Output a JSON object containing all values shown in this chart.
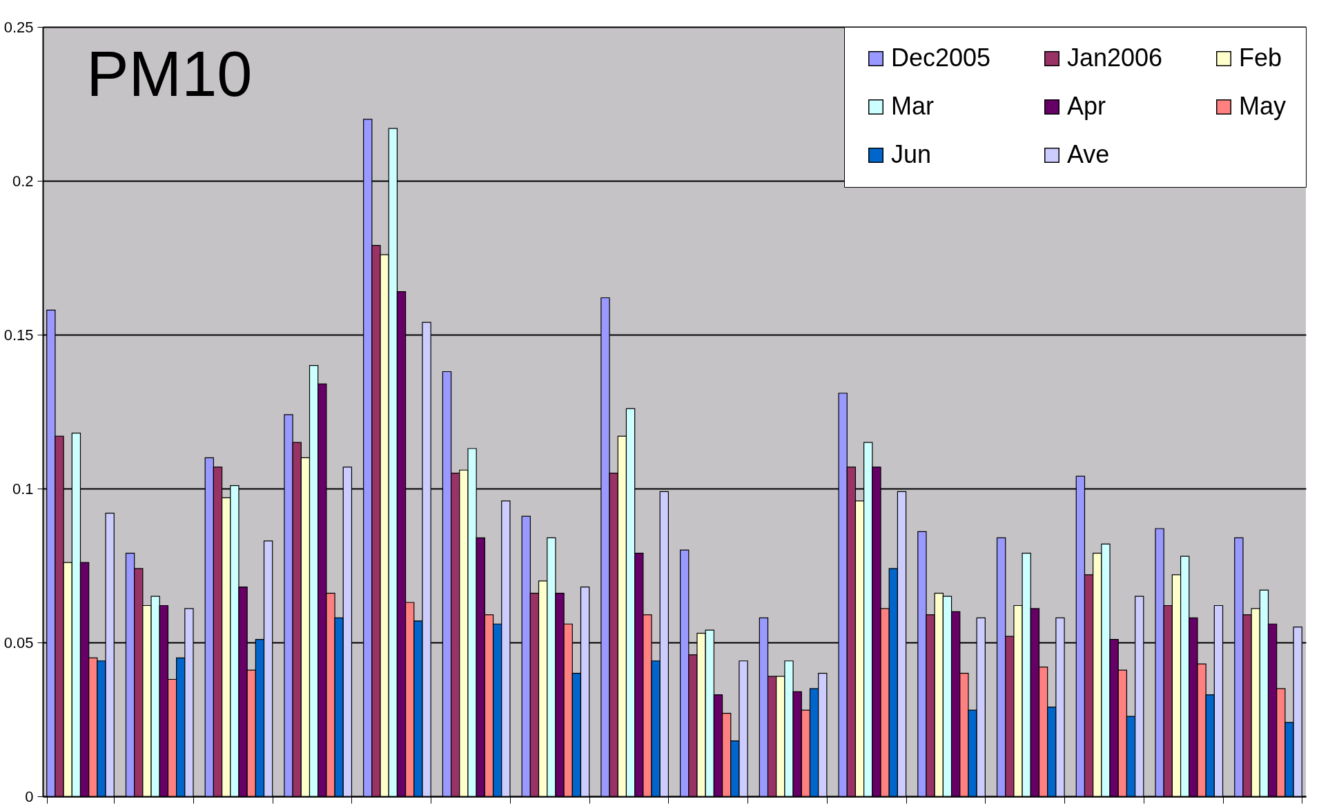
{
  "chart_data": {
    "type": "bar",
    "title": "PM10",
    "categories": [
      null,
      null,
      null,
      null,
      null,
      null,
      null,
      null,
      null,
      null,
      null,
      null,
      null,
      null,
      null,
      null
    ],
    "series": [
      {
        "name": "Dec2005",
        "color": "#9999ff",
        "values": [
          0.158,
          0.079,
          0.11,
          0.124,
          0.22,
          0.138,
          0.091,
          0.162,
          0.08,
          0.058,
          0.131,
          0.086,
          0.084,
          0.104,
          0.087,
          0.084
        ]
      },
      {
        "name": "Jan2006",
        "color": "#993366",
        "values": [
          0.117,
          0.074,
          0.107,
          0.115,
          0.179,
          0.105,
          0.066,
          0.105,
          0.046,
          0.039,
          0.107,
          0.059,
          0.052,
          0.072,
          0.062,
          0.059
        ]
      },
      {
        "name": "Feb",
        "color": "#ffffcc",
        "values": [
          0.076,
          0.062,
          0.097,
          0.11,
          0.176,
          0.106,
          0.07,
          0.117,
          0.053,
          0.039,
          0.096,
          0.066,
          0.062,
          0.079,
          0.072,
          0.061
        ]
      },
      {
        "name": "Mar",
        "color": "#ccffff",
        "values": [
          0.118,
          0.065,
          0.101,
          0.14,
          0.217,
          0.113,
          0.084,
          0.126,
          0.054,
          0.044,
          0.115,
          0.065,
          0.079,
          0.082,
          0.078,
          0.067
        ]
      },
      {
        "name": "Apr",
        "color": "#660066",
        "values": [
          0.076,
          0.062,
          0.068,
          0.134,
          0.164,
          0.084,
          0.066,
          0.079,
          0.033,
          0.034,
          0.107,
          0.06,
          0.061,
          0.051,
          0.058,
          0.056
        ]
      },
      {
        "name": "May",
        "color": "#ff8080",
        "values": [
          0.045,
          0.038,
          0.041,
          0.066,
          0.063,
          0.059,
          0.056,
          0.059,
          0.027,
          0.028,
          0.061,
          0.04,
          0.042,
          0.041,
          0.043,
          0.035
        ]
      },
      {
        "name": "Jun",
        "color": "#0066cc",
        "values": [
          0.044,
          0.045,
          0.051,
          0.058,
          0.057,
          0.056,
          0.04,
          0.044,
          0.018,
          0.035,
          0.074,
          0.028,
          0.029,
          0.026,
          0.033,
          0.024
        ]
      },
      {
        "name": "Ave",
        "color": "#ccccff",
        "values": [
          0.092,
          0.061,
          0.083,
          0.107,
          0.154,
          0.096,
          0.068,
          0.099,
          0.044,
          0.04,
          0.099,
          0.058,
          0.058,
          0.065,
          0.062,
          0.055
        ]
      }
    ],
    "ylim": [
      0,
      0.25
    ],
    "yticks": [
      0,
      0.05,
      0.1,
      0.15,
      0.2,
      0.25
    ],
    "grid": "y",
    "legend": "top right",
    "tick_labels": "y"
  }
}
